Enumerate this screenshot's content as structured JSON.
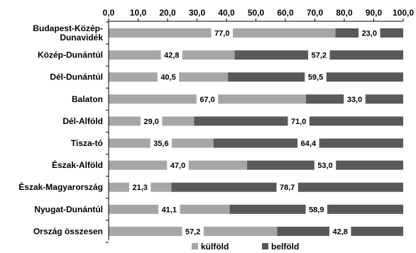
{
  "chart_data": {
    "type": "bar",
    "orientation": "horizontal",
    "stacked": true,
    "categories": [
      "Budapest-Közép-Dunavidék",
      "Közép-Dunántúl",
      "Dél-Dunántúl",
      "Balaton",
      "Dél-Alföld",
      "Tisza-tó",
      "Észak-Alföld",
      "Észak-Magyarország",
      "Nyugat-Dunántúl",
      "Ország összesen"
    ],
    "category_lines": [
      [
        "Budapest-Közép-",
        "Dunavidék"
      ],
      [
        "Közép-Dunántúl"
      ],
      [
        "Dél-Dunántúl"
      ],
      [
        "Balaton"
      ],
      [
        "Dél-Alföld"
      ],
      [
        "Tisza-tó"
      ],
      [
        "Észak-Alföld"
      ],
      [
        "Észak-Magyarország"
      ],
      [
        "Nyugat-Dunántúl"
      ],
      [
        "Ország összesen"
      ]
    ],
    "series": [
      {
        "name": "külföld",
        "color": "#a6a6a6",
        "values": [
          77.0,
          42.8,
          40.5,
          67.0,
          29.0,
          35.6,
          47.0,
          21.3,
          41.1,
          57.2
        ]
      },
      {
        "name": "belföld",
        "color": "#595959",
        "values": [
          23.0,
          57.2,
          59.5,
          33.0,
          71.0,
          64.4,
          53.0,
          78.7,
          58.9,
          42.8
        ]
      }
    ],
    "data_labels": [
      [
        "77,0",
        "23,0"
      ],
      [
        "42,8",
        "57,2"
      ],
      [
        "40,5",
        "59,5"
      ],
      [
        "67,0",
        "33,0"
      ],
      [
        "29,0",
        "71,0"
      ],
      [
        "35,6",
        "64,4"
      ],
      [
        "47,0",
        "53,0"
      ],
      [
        "21,3",
        "78,7"
      ],
      [
        "41,1",
        "58,9"
      ],
      [
        "57,2",
        "42,8"
      ]
    ],
    "xlim": [
      0,
      100
    ],
    "xticks": [
      0,
      10,
      20,
      30,
      40,
      50,
      60,
      70,
      80,
      90,
      100
    ],
    "xtick_labels": [
      "0,0",
      "10,0",
      "20,0",
      "30,0",
      "40,0",
      "50,0",
      "60,0",
      "70,0",
      "80,0",
      "90,0",
      "100,0"
    ],
    "axis_position": "top",
    "grid": false,
    "legend_position": "bottom",
    "title": "",
    "xlabel": "",
    "ylabel": ""
  }
}
